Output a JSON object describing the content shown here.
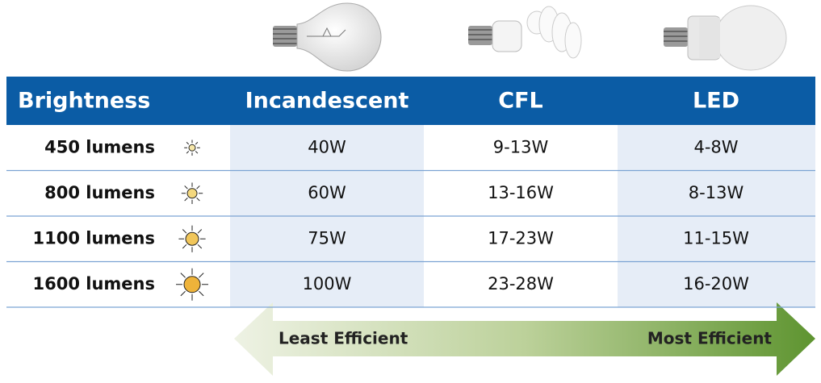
{
  "header": {
    "columns": [
      "Brightness",
      "Incandescent",
      "CFL",
      "LED"
    ]
  },
  "rows": [
    {
      "brightness": "450 lumens",
      "values": [
        "40W",
        "9-13W",
        "4-8W"
      ]
    },
    {
      "brightness": "800 lumens",
      "values": [
        "60W",
        "13-16W",
        "8-13W"
      ]
    },
    {
      "brightness": "1100 lumens",
      "values": [
        "75W",
        "17-23W",
        "11-15W"
      ]
    },
    {
      "brightness": "1600 lumens",
      "values": [
        "100W",
        "23-28W",
        "16-20W"
      ]
    }
  ],
  "arrow": {
    "left": "Least Efficient",
    "right": "Most Efficient"
  }
}
